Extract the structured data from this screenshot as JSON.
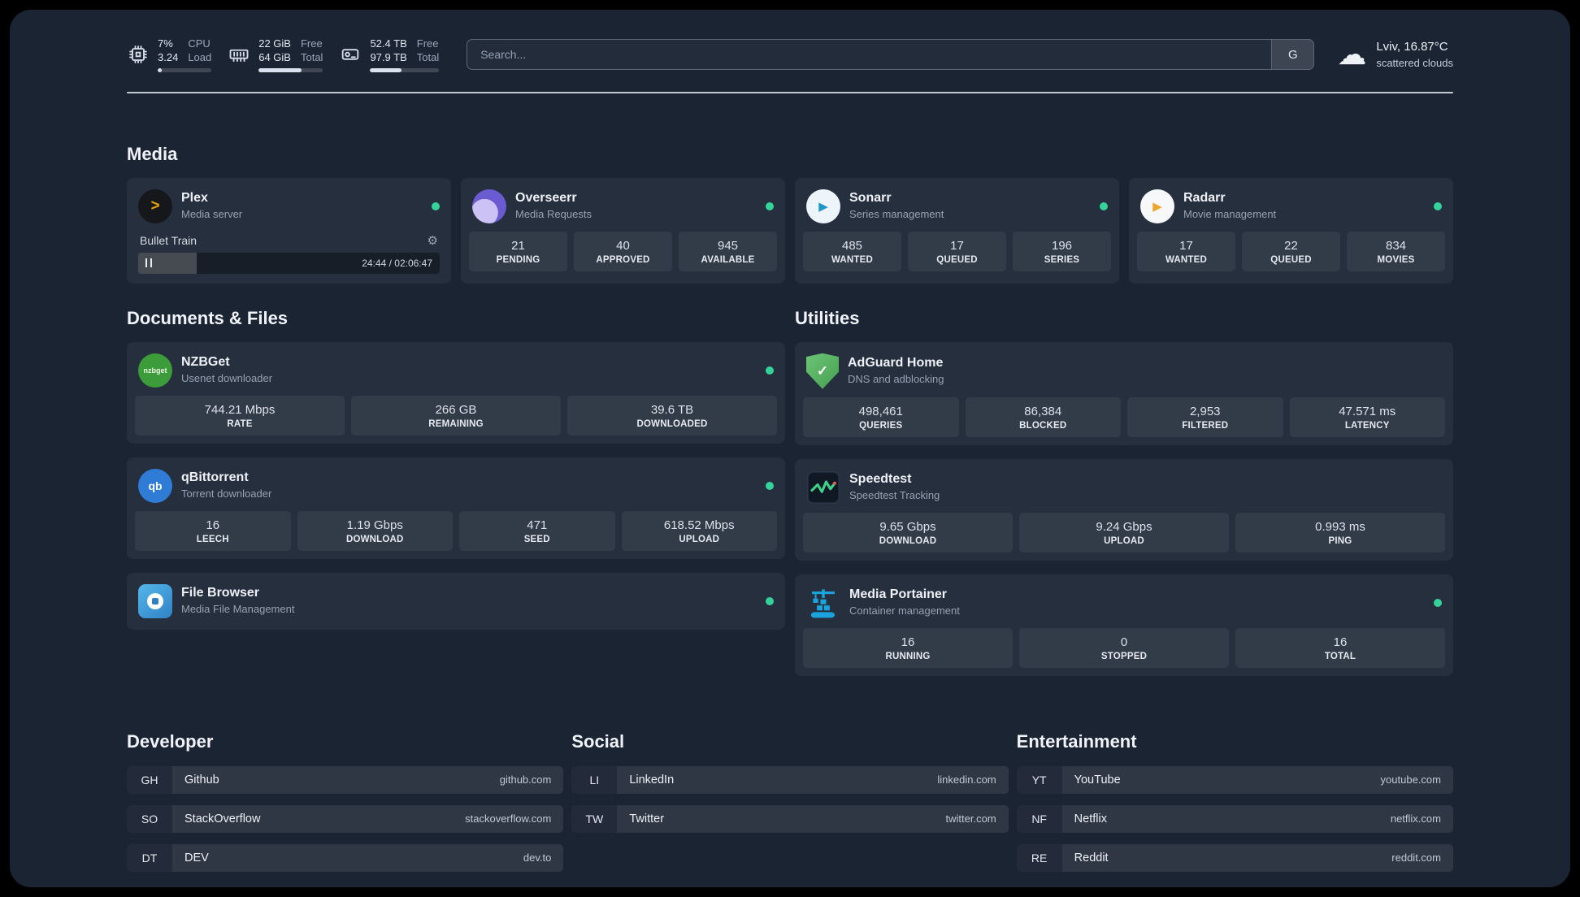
{
  "topbar": {
    "resources": [
      {
        "id": "cpu",
        "value_top": "7%",
        "value_bottom": "3.24",
        "label_top": "CPU",
        "label_bottom": "Load",
        "percent": 7
      },
      {
        "id": "memory",
        "value_top": "22 GiB",
        "value_bottom": "64 GiB",
        "label_top": "Free",
        "label_bottom": "Total",
        "percent": 66
      },
      {
        "id": "disk",
        "value_top": "52.4 TB",
        "value_bottom": "97.9 TB",
        "label_top": "Free",
        "label_bottom": "Total",
        "percent": 46
      }
    ],
    "search": {
      "placeholder": "Search...",
      "button_label": "G"
    },
    "weather": {
      "location": "Lviv, 16.87°C",
      "condition": "scattered clouds"
    }
  },
  "groups": {
    "media": {
      "title": "Media",
      "services": [
        {
          "name": "Plex",
          "description": "Media server",
          "status": "online",
          "player": {
            "title": "Bullet Train",
            "time": "24:44 / 02:06:47",
            "progress_percent": 19.5
          }
        },
        {
          "name": "Overseerr",
          "description": "Media Requests",
          "status": "online",
          "stats": [
            {
              "value": "21",
              "label": "PENDING"
            },
            {
              "value": "40",
              "label": "APPROVED"
            },
            {
              "value": "945",
              "label": "AVAILABLE"
            }
          ]
        },
        {
          "name": "Sonarr",
          "description": "Series management",
          "status": "online",
          "stats": [
            {
              "value": "485",
              "label": "WANTED"
            },
            {
              "value": "17",
              "label": "QUEUED"
            },
            {
              "value": "196",
              "label": "SERIES"
            }
          ]
        },
        {
          "name": "Radarr",
          "description": "Movie management",
          "status": "online",
          "stats": [
            {
              "value": "17",
              "label": "WANTED"
            },
            {
              "value": "22",
              "label": "QUEUED"
            },
            {
              "value": "834",
              "label": "MOVIES"
            }
          ]
        }
      ]
    },
    "documents": {
      "title": "Documents & Files",
      "services": [
        {
          "name": "NZBGet",
          "description": "Usenet downloader",
          "status": "online",
          "stats": [
            {
              "value": "744.21 Mbps",
              "label": "RATE"
            },
            {
              "value": "266 GB",
              "label": "REMAINING"
            },
            {
              "value": "39.6 TB",
              "label": "DOWNLOADED"
            }
          ]
        },
        {
          "name": "qBittorrent",
          "description": "Torrent downloader",
          "status": "online",
          "stats": [
            {
              "value": "16",
              "label": "LEECH"
            },
            {
              "value": "1.19 Gbps",
              "label": "DOWNLOAD"
            },
            {
              "value": "471",
              "label": "SEED"
            },
            {
              "value": "618.52 Mbps",
              "label": "UPLOAD"
            }
          ]
        },
        {
          "name": "File Browser",
          "description": "Media File Management",
          "status": "online",
          "stats": []
        }
      ]
    },
    "utilities": {
      "title": "Utilities",
      "services": [
        {
          "name": "AdGuard Home",
          "description": "DNS and adblocking",
          "stats": [
            {
              "value": "498,461",
              "label": "QUERIES"
            },
            {
              "value": "86,384",
              "label": "BLOCKED"
            },
            {
              "value": "2,953",
              "label": "FILTERED"
            },
            {
              "value": "47.571 ms",
              "label": "LATENCY"
            }
          ]
        },
        {
          "name": "Speedtest",
          "description": "Speedtest Tracking",
          "stats": [
            {
              "value": "9.65 Gbps",
              "label": "DOWNLOAD"
            },
            {
              "value": "9.24 Gbps",
              "label": "UPLOAD"
            },
            {
              "value": "0.993 ms",
              "label": "PING"
            }
          ]
        },
        {
          "name": "Media Portainer",
          "description": "Container management",
          "status": "online",
          "stats": [
            {
              "value": "16",
              "label": "RUNNING"
            },
            {
              "value": "0",
              "label": "STOPPED"
            },
            {
              "value": "16",
              "label": "TOTAL"
            }
          ]
        }
      ]
    }
  },
  "bookmarks": [
    {
      "title": "Developer",
      "items": [
        {
          "abbr": "GH",
          "name": "Github",
          "domain": "github.com"
        },
        {
          "abbr": "SO",
          "name": "StackOverflow",
          "domain": "stackoverflow.com"
        },
        {
          "abbr": "DT",
          "name": "DEV",
          "domain": "dev.to"
        }
      ]
    },
    {
      "title": "Social",
      "items": [
        {
          "abbr": "LI",
          "name": "LinkedIn",
          "domain": "linkedin.com"
        },
        {
          "abbr": "TW",
          "name": "Twitter",
          "domain": "twitter.com"
        }
      ]
    },
    {
      "title": "Entertainment",
      "items": [
        {
          "abbr": "YT",
          "name": "YouTube",
          "domain": "youtube.com"
        },
        {
          "abbr": "NF",
          "name": "Netflix",
          "domain": "netflix.com"
        },
        {
          "abbr": "RE",
          "name": "Reddit",
          "domain": "reddit.com"
        }
      ]
    }
  ],
  "icons": {
    "plex_glyph": ">",
    "sonarr_glyph": "▶",
    "radarr_glyph": "▶",
    "nzbget_glyph": "nzbget",
    "qbittorrent_glyph": "qb",
    "adguard_glyph": "✓",
    "gear_glyph": "⚙",
    "cloud_glyph": "☁"
  },
  "colors": {
    "status_online": "#34d399",
    "accent_background": "#1b2433"
  }
}
